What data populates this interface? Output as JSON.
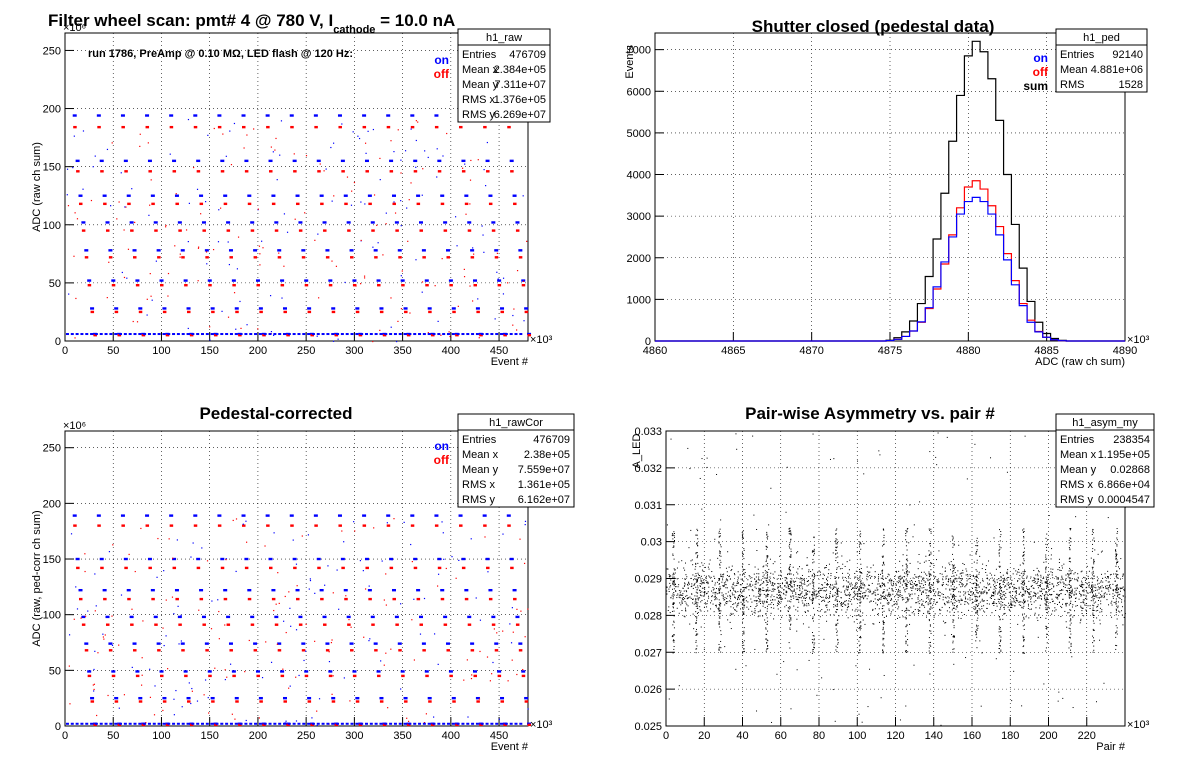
{
  "colors": {
    "on": "#0000ff",
    "off": "#ff0000",
    "sum": "#000000",
    "frame": "#000000",
    "grid": "#000000"
  },
  "chart_data": [
    {
      "id": "raw",
      "type": "scatter",
      "title_main": "Filter wheel scan: pmt#   4 @   780 V, I",
      "title_sub": "cathode",
      "title_tail": "  = 10.0 nA",
      "annotation": "run 1786, PreAmp @ 0.10 MΩ, LED flash @  120 Hz:",
      "xlabel": "Event #",
      "ylabel": "ADC (raw ch sum)",
      "x_multiplier": "×10³",
      "y_multiplier": "×10⁶",
      "xlim": [
        0,
        480
      ],
      "ylim": [
        0,
        265
      ],
      "xticks": [
        0,
        50,
        100,
        150,
        200,
        250,
        300,
        350,
        400,
        450
      ],
      "yticks": [
        0,
        50,
        100,
        150,
        200,
        250
      ],
      "legend": [
        "on",
        "off"
      ],
      "stats": {
        "name": "h1_raw",
        "rows": [
          [
            "Entries",
            "476709"
          ],
          [
            "Mean x",
            "2.384e+05"
          ],
          [
            "Mean y",
            "7.311e+07"
          ],
          [
            "RMS x",
            "1.376e+05"
          ],
          [
            "RMS y",
            "6.269e+07"
          ]
        ]
      },
      "series": [
        {
          "name": "on",
          "levels": [
            194,
            155,
            125,
            102,
            78,
            52,
            28,
            6
          ]
        },
        {
          "name": "off",
          "levels": [
            184,
            146,
            118,
            95,
            72,
            48,
            25,
            5
          ]
        }
      ]
    },
    {
      "id": "ped",
      "type": "histogram",
      "title": "Shutter closed (pedestal data)",
      "xlabel": "ADC (raw ch sum)",
      "ylabel": "Events",
      "x_multiplier": "×10³",
      "xlim": [
        4860,
        4890
      ],
      "ylim": [
        0,
        7400
      ],
      "xticks": [
        4860,
        4865,
        4870,
        4875,
        4880,
        4885,
        4890
      ],
      "yticks": [
        0,
        1000,
        2000,
        3000,
        4000,
        5000,
        6000,
        7000
      ],
      "legend": [
        "on",
        "off",
        "sum"
      ],
      "stats": {
        "name": "h1_ped",
        "rows": [
          [
            "Entries",
            "92140"
          ],
          [
            "Mean",
            "4.881e+06"
          ],
          [
            "RMS",
            "1528"
          ]
        ]
      },
      "bins": [
        4875,
        4875.5,
        4876,
        4876.5,
        4877,
        4877.5,
        4878,
        4878.5,
        4879,
        4879.5,
        4880,
        4880.5,
        4881,
        4881.5,
        4882,
        4882.5,
        4883,
        4883.5,
        4884,
        4884.5,
        4885,
        4885.5,
        4886
      ],
      "series": [
        {
          "name": "sum",
          "values": [
            20,
            80,
            220,
            480,
            900,
            1550,
            2450,
            3550,
            4800,
            5900,
            6850,
            7200,
            6950,
            6300,
            5300,
            4000,
            2800,
            1750,
            950,
            450,
            180,
            60,
            15
          ]
        },
        {
          "name": "off",
          "values": [
            10,
            40,
            110,
            240,
            450,
            780,
            1250,
            1850,
            2550,
            3200,
            3700,
            3850,
            3650,
            3250,
            2750,
            2100,
            1450,
            900,
            500,
            230,
            90,
            30,
            8
          ]
        },
        {
          "name": "on",
          "values": [
            10,
            40,
            110,
            240,
            460,
            800,
            1300,
            1900,
            2500,
            3050,
            3350,
            3450,
            3350,
            3050,
            2550,
            1950,
            1350,
            850,
            450,
            220,
            90,
            30,
            8
          ]
        }
      ]
    },
    {
      "id": "rawCor",
      "type": "scatter",
      "title": "Pedestal-corrected",
      "xlabel": "Event #",
      "ylabel": "ADC (raw, ped-corr ch sum)",
      "x_multiplier": "×10³",
      "y_multiplier": "×10⁶",
      "xlim": [
        0,
        480
      ],
      "ylim": [
        0,
        265
      ],
      "xticks": [
        0,
        50,
        100,
        150,
        200,
        250,
        300,
        350,
        400,
        450
      ],
      "yticks": [
        0,
        50,
        100,
        150,
        200,
        250
      ],
      "legend": [
        "on",
        "off"
      ],
      "stats": {
        "name": "h1_rawCor",
        "rows": [
          [
            "Entries",
            "476709"
          ],
          [
            "Mean x",
            "2.38e+05"
          ],
          [
            "Mean y",
            "7.559e+07"
          ],
          [
            "RMS x",
            "1.361e+05"
          ],
          [
            "RMS y",
            "6.162e+07"
          ]
        ]
      },
      "series": [
        {
          "name": "on",
          "levels": [
            189,
            150,
            122,
            98,
            74,
            49,
            25,
            2
          ]
        },
        {
          "name": "off",
          "levels": [
            180,
            142,
            114,
            91,
            68,
            45,
            22,
            1
          ]
        }
      ]
    },
    {
      "id": "asym",
      "type": "scatter",
      "title": "Pair-wise Asymmetry vs. pair #",
      "xlabel": "Pair #",
      "ylabel": "A_LED",
      "x_multiplier": "×10³",
      "xlim": [
        0,
        240
      ],
      "ylim": [
        0.025,
        0.033
      ],
      "xticks": [
        0,
        20,
        40,
        60,
        80,
        100,
        120,
        140,
        160,
        180,
        200,
        220
      ],
      "yticks": [
        0.025,
        0.026,
        0.027,
        0.028,
        0.029,
        0.03,
        0.031,
        0.032,
        0.033
      ],
      "stats": {
        "name": "h1_asym_my",
        "rows": [
          [
            "Entries",
            "238354"
          ],
          [
            "Mean x",
            "1.195e+05"
          ],
          [
            "Mean y",
            "0.02868"
          ],
          [
            "RMS x",
            "6.866e+04"
          ],
          [
            "RMS y",
            "0.0004547"
          ]
        ]
      },
      "series": [
        {
          "name": "asym",
          "mean": 0.02868,
          "rms": 0.0004547
        }
      ]
    }
  ]
}
